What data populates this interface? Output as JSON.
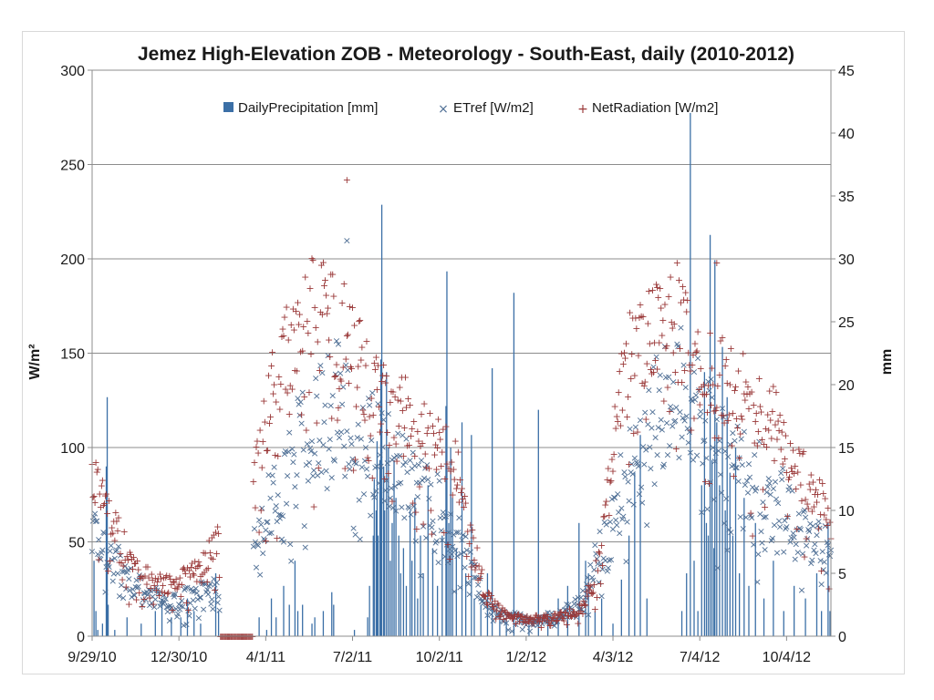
{
  "chart_data": {
    "type": "scatter",
    "title": "Jemez High-Elevation ZOB - Meteorology - South-East, daily (2010-2012)",
    "ylabel_left": "W/m²",
    "ylabel_right": "mm",
    "xlabel": "",
    "x_ticks": [
      "9/29/10",
      "12/30/10",
      "4/1/11",
      "7/2/11",
      "10/2/11",
      "1/2/12",
      "4/3/12",
      "7/4/12",
      "10/4/12"
    ],
    "x_range": [
      "2010-09-29",
      "2012-11-20"
    ],
    "y_left_ticks": [
      "0",
      "50",
      "100",
      "150",
      "200",
      "250",
      "300"
    ],
    "y_left_range": [
      0,
      300
    ],
    "y_right_ticks": [
      "0",
      "5",
      "10",
      "15",
      "20",
      "25",
      "30",
      "35",
      "40",
      "45"
    ],
    "y_right_range": [
      0,
      45
    ],
    "grid": "horizontal",
    "legend_position": "top-center",
    "series": [
      {
        "name": "DailyPrecipitation [mm]",
        "marker": "bar",
        "axis": "right",
        "color": "#3b6fa6",
        "points": [
          [
            "2010-10-01",
            6
          ],
          [
            "2010-10-03",
            2
          ],
          [
            "2010-10-05",
            0.5
          ],
          [
            "2010-10-10",
            1
          ],
          [
            "2010-10-14",
            13.5
          ],
          [
            "2010-10-15",
            19
          ],
          [
            "2010-10-16",
            2.5
          ],
          [
            "2010-10-23",
            0.5
          ],
          [
            "2010-11-05",
            1.5
          ],
          [
            "2010-11-20",
            1
          ],
          [
            "2010-12-05",
            2
          ],
          [
            "2010-12-12",
            3
          ],
          [
            "2010-12-22",
            1.5
          ],
          [
            "2011-01-01",
            1.5
          ],
          [
            "2011-01-08",
            3
          ],
          [
            "2011-01-15",
            2
          ],
          [
            "2011-01-22",
            1
          ],
          [
            "2011-02-07",
            5
          ],
          [
            "2011-02-10",
            2
          ],
          [
            "2011-03-25",
            1.5
          ],
          [
            "2011-04-02",
            0.5
          ],
          [
            "2011-04-07",
            3
          ],
          [
            "2011-04-12",
            1.5
          ],
          [
            "2011-04-20",
            4
          ],
          [
            "2011-04-26",
            2.5
          ],
          [
            "2011-05-02",
            6
          ],
          [
            "2011-05-05",
            2
          ],
          [
            "2011-05-10",
            2.5
          ],
          [
            "2011-05-20",
            1
          ],
          [
            "2011-05-23",
            1.5
          ],
          [
            "2011-06-01",
            2
          ],
          [
            "2011-06-10",
            3.5
          ],
          [
            "2011-06-12",
            2.5
          ],
          [
            "2011-07-04",
            0.5
          ],
          [
            "2011-07-18",
            1.5
          ],
          [
            "2011-07-20",
            4
          ],
          [
            "2011-07-24",
            8
          ],
          [
            "2011-07-25",
            12.5
          ],
          [
            "2011-07-27",
            10
          ],
          [
            "2011-07-28",
            15.5
          ],
          [
            "2011-07-29",
            8
          ],
          [
            "2011-07-31",
            14
          ],
          [
            "2011-08-01",
            22
          ],
          [
            "2011-08-02",
            34.3
          ],
          [
            "2011-08-04",
            13.5
          ],
          [
            "2011-08-05",
            10
          ],
          [
            "2011-08-07",
            21
          ],
          [
            "2011-08-09",
            15
          ],
          [
            "2011-08-11",
            6
          ],
          [
            "2011-08-13",
            9
          ],
          [
            "2011-08-15",
            14
          ],
          [
            "2011-08-17",
            11
          ],
          [
            "2011-08-20",
            8
          ],
          [
            "2011-08-22",
            5
          ],
          [
            "2011-08-25",
            7
          ],
          [
            "2011-08-28",
            4
          ],
          [
            "2011-09-01",
            10
          ],
          [
            "2011-09-03",
            6
          ],
          [
            "2011-09-06",
            11
          ],
          [
            "2011-09-09",
            3
          ],
          [
            "2011-09-12",
            8
          ],
          [
            "2011-09-15",
            5
          ],
          [
            "2011-09-20",
            12
          ],
          [
            "2011-09-25",
            7
          ],
          [
            "2011-09-30",
            4
          ],
          [
            "2011-10-05",
            8
          ],
          [
            "2011-10-09",
            18.3
          ],
          [
            "2011-10-10",
            29
          ],
          [
            "2011-10-12",
            9
          ],
          [
            "2011-10-14",
            15
          ],
          [
            "2011-10-16",
            11
          ],
          [
            "2011-10-20",
            7
          ],
          [
            "2011-10-26",
            17
          ],
          [
            "2011-10-30",
            5
          ],
          [
            "2011-11-05",
            16
          ],
          [
            "2011-11-08",
            3
          ],
          [
            "2011-11-15",
            2.5
          ],
          [
            "2011-11-22",
            5
          ],
          [
            "2011-11-27",
            21.3
          ],
          [
            "2011-12-05",
            2
          ],
          [
            "2011-12-12",
            1.5
          ],
          [
            "2011-12-20",
            27.3
          ],
          [
            "2012-01-05",
            1
          ],
          [
            "2012-01-15",
            18
          ],
          [
            "2012-01-25",
            2
          ],
          [
            "2012-02-05",
            3
          ],
          [
            "2012-02-15",
            4
          ],
          [
            "2012-02-27",
            9
          ],
          [
            "2012-03-05",
            6
          ],
          [
            "2012-03-08",
            5
          ],
          [
            "2012-03-15",
            2
          ],
          [
            "2012-03-22",
            3
          ],
          [
            "2012-04-03",
            1
          ],
          [
            "2012-04-12",
            4.5
          ],
          [
            "2012-04-20",
            8
          ],
          [
            "2012-04-26",
            13
          ],
          [
            "2012-05-02",
            16
          ],
          [
            "2012-05-09",
            3
          ],
          [
            "2012-06-15",
            2
          ],
          [
            "2012-06-20",
            5
          ],
          [
            "2012-06-24",
            41.6
          ],
          [
            "2012-06-28",
            6
          ],
          [
            "2012-07-02",
            2
          ],
          [
            "2012-07-06",
            12
          ],
          [
            "2012-07-09",
            21
          ],
          [
            "2012-07-11",
            9
          ],
          [
            "2012-07-13",
            8
          ],
          [
            "2012-07-15",
            31.9
          ],
          [
            "2012-07-17",
            14
          ],
          [
            "2012-07-19",
            7
          ],
          [
            "2012-07-20",
            29.9
          ],
          [
            "2012-07-22",
            17
          ],
          [
            "2012-07-25",
            12
          ],
          [
            "2012-07-28",
            23
          ],
          [
            "2012-07-31",
            10
          ],
          [
            "2012-08-02",
            19
          ],
          [
            "2012-08-05",
            13
          ],
          [
            "2012-08-08",
            8
          ],
          [
            "2012-08-11",
            15
          ],
          [
            "2012-08-15",
            5
          ],
          [
            "2012-08-20",
            11
          ],
          [
            "2012-08-25",
            4
          ],
          [
            "2012-09-01",
            9
          ],
          [
            "2012-09-10",
            3
          ],
          [
            "2012-09-20",
            6
          ],
          [
            "2012-10-01",
            2
          ],
          [
            "2012-10-12",
            4
          ],
          [
            "2012-10-24",
            3
          ],
          [
            "2012-11-05",
            5
          ],
          [
            "2012-11-10",
            2
          ],
          [
            "2012-11-17",
            9
          ],
          [
            "2012-11-19",
            2
          ]
        ]
      },
      {
        "name": "ETref [W/m2]",
        "marker": "x",
        "axis": "left",
        "color": "#4f6f95",
        "envelope": [
          [
            "2010-09-29",
            56
          ],
          [
            "2010-10-10",
            50
          ],
          [
            "2010-10-20",
            42
          ],
          [
            "2010-11-01",
            35
          ],
          [
            "2010-11-15",
            28
          ],
          [
            "2010-12-01",
            22
          ],
          [
            "2010-12-15",
            18
          ],
          [
            "2010-12-30",
            19
          ],
          [
            "2011-01-15",
            22
          ],
          [
            "2011-02-01",
            24
          ],
          [
            "2011-02-10",
            25
          ],
          [
            "2011-03-20",
            50
          ],
          [
            "2011-04-10",
            80
          ],
          [
            "2011-05-01",
            100
          ],
          [
            "2011-05-20",
            110
          ],
          [
            "2011-06-05",
            120
          ],
          [
            "2011-06-20",
            130
          ],
          [
            "2011-07-05",
            120
          ],
          [
            "2011-07-20",
            105
          ],
          [
            "2011-08-05",
            95
          ],
          [
            "2011-08-25",
            85
          ],
          [
            "2011-09-10",
            75
          ],
          [
            "2011-09-30",
            68
          ],
          [
            "2011-10-20",
            55
          ],
          [
            "2011-11-05",
            35
          ],
          [
            "2011-11-20",
            18
          ],
          [
            "2011-12-10",
            10
          ],
          [
            "2012-01-05",
            9
          ],
          [
            "2012-02-01",
            10
          ],
          [
            "2012-03-01",
            18
          ],
          [
            "2012-03-20",
            45
          ],
          [
            "2012-04-10",
            75
          ],
          [
            "2012-05-01",
            100
          ],
          [
            "2012-05-20",
            118
          ],
          [
            "2012-06-10",
            130
          ],
          [
            "2012-06-25",
            128
          ],
          [
            "2012-07-10",
            115
          ],
          [
            "2012-07-25",
            100
          ],
          [
            "2012-08-10",
            90
          ],
          [
            "2012-08-25",
            85
          ],
          [
            "2012-09-10",
            80
          ],
          [
            "2012-09-30",
            70
          ],
          [
            "2012-10-20",
            60
          ],
          [
            "2012-11-05",
            52
          ],
          [
            "2012-11-20",
            42
          ]
        ],
        "outliers": [
          [
            "2011-06-26",
            210
          ]
        ]
      },
      {
        "name": "NetRadiation [W/m2]",
        "marker": "+",
        "axis": "left",
        "color": "#9a3838",
        "envelope": [
          [
            "2010-09-29",
            82
          ],
          [
            "2010-10-10",
            72
          ],
          [
            "2010-10-20",
            62
          ],
          [
            "2010-11-01",
            48
          ],
          [
            "2010-11-15",
            38
          ],
          [
            "2010-12-01",
            32
          ],
          [
            "2010-12-15",
            28
          ],
          [
            "2010-12-30",
            30
          ],
          [
            "2011-01-15",
            34
          ],
          [
            "2011-02-01",
            44
          ],
          [
            "2011-02-10",
            55
          ],
          [
            "2011-03-20",
            80
          ],
          [
            "2011-04-10",
            135
          ],
          [
            "2011-05-01",
            160
          ],
          [
            "2011-05-20",
            172
          ],
          [
            "2011-06-05",
            170
          ],
          [
            "2011-06-20",
            165
          ],
          [
            "2011-07-05",
            150
          ],
          [
            "2011-07-20",
            130
          ],
          [
            "2011-08-05",
            125
          ],
          [
            "2011-08-25",
            118
          ],
          [
            "2011-09-10",
            110
          ],
          [
            "2011-09-30",
            102
          ],
          [
            "2011-10-20",
            88
          ],
          [
            "2011-11-05",
            55
          ],
          [
            "2011-11-20",
            22
          ],
          [
            "2011-12-10",
            12
          ],
          [
            "2012-01-05",
            9
          ],
          [
            "2012-02-01",
            10
          ],
          [
            "2012-03-01",
            15
          ],
          [
            "2012-03-20",
            40
          ],
          [
            "2012-04-10",
            130
          ],
          [
            "2012-05-01",
            160
          ],
          [
            "2012-05-20",
            172
          ],
          [
            "2012-06-10",
            168
          ],
          [
            "2012-06-25",
            155
          ],
          [
            "2012-07-10",
            145
          ],
          [
            "2012-07-25",
            140
          ],
          [
            "2012-08-10",
            132
          ],
          [
            "2012-08-25",
            125
          ],
          [
            "2012-09-10",
            120
          ],
          [
            "2012-09-30",
            105
          ],
          [
            "2012-10-20",
            85
          ],
          [
            "2012-11-05",
            75
          ],
          [
            "2012-11-20",
            60
          ]
        ],
        "outliers": [
          [
            "2011-06-26",
            242
          ],
          [
            "2012-07-22",
            198
          ],
          [
            "2012-05-20",
            185
          ]
        ]
      }
    ],
    "zero_segment": {
      "series": "NetRadiation [W/m2]",
      "color": "#9a3838",
      "from": "2011-02-12",
      "to": "2011-03-18",
      "value": 0
    }
  }
}
